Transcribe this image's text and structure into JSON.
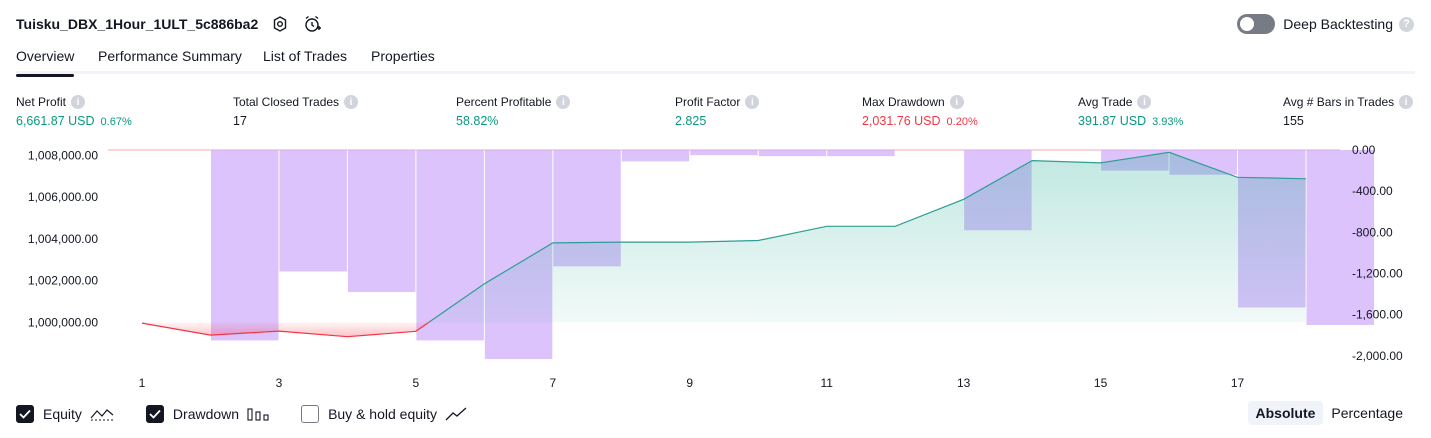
{
  "header": {
    "title": "Tuisku_DBX_1Hour_1ULT_5c886ba2",
    "settings_icon": "gear-icon",
    "alert_icon": "alarm-add-icon"
  },
  "deep_backtesting": {
    "label": "Deep Backtesting",
    "enabled": false,
    "help": "?"
  },
  "tabs": [
    {
      "label": "Overview",
      "active": true
    },
    {
      "label": "Performance Summary",
      "active": false
    },
    {
      "label": "List of Trades",
      "active": false
    },
    {
      "label": "Properties",
      "active": false
    }
  ],
  "metrics": {
    "net_profit": {
      "label": "Net Profit",
      "value": "6,661.87 USD",
      "pct": "0.67%"
    },
    "total_closed_trades": {
      "label": "Total Closed Trades",
      "value": "17"
    },
    "percent_profitable": {
      "label": "Percent Profitable",
      "value": "58.82%"
    },
    "profit_factor": {
      "label": "Profit Factor",
      "value": "2.825"
    },
    "max_drawdown": {
      "label": "Max Drawdown",
      "value": "2,031.76 USD",
      "pct": "0.20%"
    },
    "avg_trade": {
      "label": "Avg Trade",
      "value": "391.87 USD",
      "pct": "3.93%"
    },
    "avg_bars": {
      "label": "Avg # Bars in Trades",
      "value": "155"
    }
  },
  "chart_data": {
    "type": "line",
    "x": [
      1,
      2,
      3,
      4,
      5,
      6,
      7,
      8,
      9,
      10,
      11,
      12,
      13,
      14,
      15,
      16,
      17,
      18
    ],
    "x_tick_labels": [
      "1",
      "3",
      "5",
      "7",
      "9",
      "11",
      "13",
      "15",
      "17"
    ],
    "series": [
      {
        "name": "Equity",
        "axis": "left",
        "values": [
          999970,
          999395,
          999585,
          999315,
          999575,
          1001850,
          1003810,
          1003850,
          1003850,
          1003925,
          1004605,
          1004605,
          1005900,
          1007750,
          1007640,
          1008150,
          1006950,
          1006880
        ]
      },
      {
        "name": "Drawdown",
        "axis": "right",
        "type": "bar",
        "values": [
          0,
          -1850,
          -1180,
          -1380,
          -1850,
          -2030,
          -1130,
          -110,
          -50,
          -60,
          -60,
          0,
          -780,
          0,
          -200,
          -240,
          -1530,
          -1700
        ]
      }
    ],
    "baseline": 1000000,
    "y_left_ticks": [
      "1,000,000.00",
      "1,002,000.00",
      "1,004,000.00",
      "1,006,000.00",
      "1,008,000.00"
    ],
    "y_left_range": [
      998200,
      1008260
    ],
    "y_right_ticks": [
      "0.00",
      "-400.00",
      "-800.00",
      "-1,200.00",
      "-1,600.00",
      "-2,000.00"
    ],
    "y_right_range": [
      -2040,
      0
    ],
    "colors": {
      "equity_line": "#2e9e94",
      "equity_fill": "#22ab94",
      "loss_line": "#f23645",
      "drawdown_bar": "#cba6fb"
    }
  },
  "legend": [
    {
      "label": "Equity",
      "checked": true,
      "icon": "equity-icon"
    },
    {
      "label": "Drawdown",
      "checked": true,
      "icon": "drawdown-icon"
    },
    {
      "label": "Buy & hold equity",
      "checked": false,
      "icon": "buy-hold-icon"
    }
  ],
  "mode": {
    "absolute": "Absolute",
    "percentage": "Percentage",
    "selected": "Absolute"
  }
}
